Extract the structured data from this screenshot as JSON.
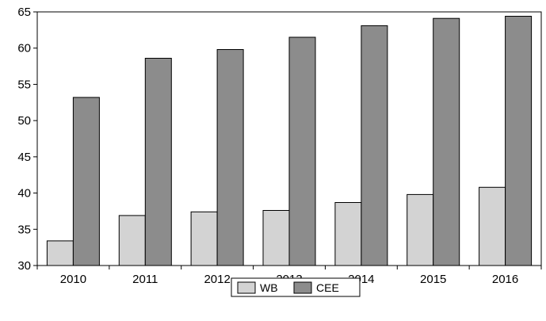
{
  "chart_data": {
    "type": "bar",
    "title": "",
    "xlabel": "",
    "ylabel": "",
    "categories": [
      "2010",
      "2011",
      "2012",
      "2013",
      "2014",
      "2015",
      "2016"
    ],
    "series": [
      {
        "name": "WB",
        "color": "#d3d3d3",
        "values": [
          33.4,
          36.9,
          37.4,
          37.6,
          38.7,
          39.8,
          40.8
        ]
      },
      {
        "name": "CEE",
        "color": "#8c8c8c",
        "values": [
          53.2,
          58.6,
          59.8,
          61.5,
          63.1,
          64.1,
          64.4
        ]
      }
    ],
    "ylim": [
      30,
      65
    ],
    "yticks": [
      30,
      35,
      40,
      45,
      50,
      55,
      60,
      65
    ],
    "grid": false,
    "legend": "bottom-center"
  }
}
